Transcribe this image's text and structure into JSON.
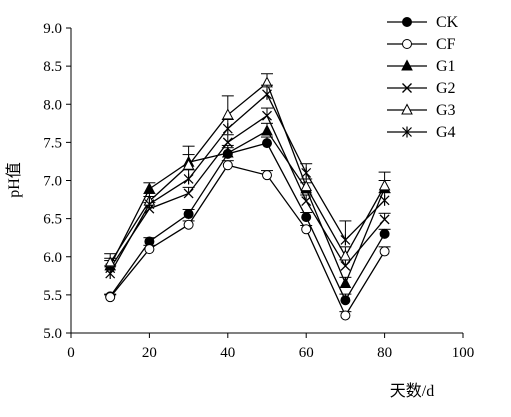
{
  "chart_data": {
    "type": "line",
    "xlabel": "天数/d",
    "ylabel": "pH值",
    "xlim": [
      0,
      100
    ],
    "ylim": [
      5.0,
      9.0
    ],
    "x_ticks": [
      0,
      20,
      40,
      60,
      80,
      100
    ],
    "y_ticks": [
      5.0,
      5.5,
      6.0,
      6.5,
      7.0,
      7.5,
      8.0,
      8.5,
      9.0
    ],
    "grid": false,
    "legend_position": "top-right",
    "x": [
      10,
      20,
      30,
      40,
      50,
      60,
      70,
      80
    ],
    "series": [
      {
        "name": "CK",
        "marker": "filled-circle",
        "values": [
          5.48,
          6.2,
          6.56,
          7.35,
          7.49,
          6.52,
          5.43,
          6.3
        ],
        "errors": [
          0.03,
          0.05,
          0.06,
          0.08,
          0.08,
          0.06,
          0.08,
          0.06
        ]
      },
      {
        "name": "CF",
        "marker": "open-circle",
        "values": [
          5.47,
          6.1,
          6.42,
          7.2,
          7.07,
          6.36,
          5.23,
          6.07
        ],
        "errors": [
          0.03,
          0.05,
          0.05,
          0.06,
          0.06,
          0.05,
          0.05,
          0.06
        ]
      },
      {
        "name": "G1",
        "marker": "filled-triangle",
        "values": [
          5.88,
          6.89,
          7.24,
          7.36,
          7.65,
          6.89,
          5.65,
          6.9
        ],
        "errors": [
          0.1,
          0.08,
          0.1,
          0.1,
          0.1,
          0.08,
          0.08,
          0.1
        ]
      },
      {
        "name": "G2",
        "marker": "x",
        "values": [
          5.85,
          6.63,
          6.83,
          7.5,
          7.85,
          6.73,
          5.88,
          6.49
        ],
        "errors": [
          0.1,
          0.08,
          0.08,
          0.1,
          0.1,
          0.08,
          0.08,
          0.08
        ]
      },
      {
        "name": "G3",
        "marker": "open-triangle",
        "values": [
          5.92,
          6.73,
          7.2,
          7.86,
          8.28,
          6.92,
          6.01,
          6.93
        ],
        "errors": [
          0.12,
          0.1,
          0.25,
          0.25,
          0.12,
          0.1,
          0.12,
          0.18
        ]
      },
      {
        "name": "G4",
        "marker": "asterisk",
        "values": [
          5.78,
          6.69,
          7.02,
          7.68,
          8.13,
          7.1,
          6.22,
          6.74
        ],
        "errors": [
          0.1,
          0.1,
          0.12,
          0.12,
          0.12,
          0.12,
          0.25,
          0.1
        ]
      }
    ]
  }
}
